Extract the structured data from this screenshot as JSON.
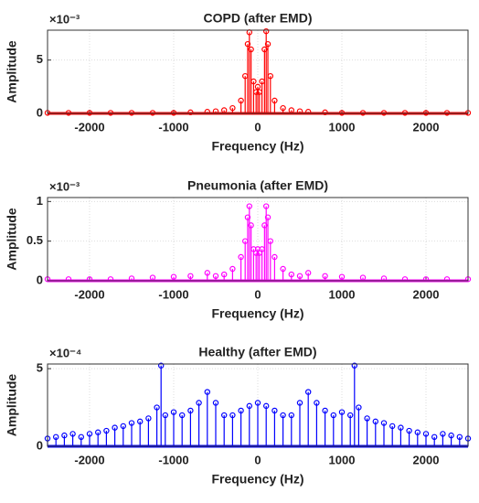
{
  "chart_data": [
    {
      "type": "stem",
      "title": "COPD (after EMD)",
      "xlabel": "Frequency (Hz)",
      "ylabel": "Amplitude",
      "exponent": "×10⁻³",
      "color": "#ff0000",
      "grid": true,
      "xlim": [
        -2500,
        2500
      ],
      "xticks": [
        -2000,
        -1000,
        0,
        1000,
        2000
      ],
      "ylim": [
        0,
        7.8
      ],
      "yticks": [
        0,
        5
      ],
      "x": [
        -2500,
        -2250,
        -2000,
        -1750,
        -1500,
        -1250,
        -1000,
        -800,
        -600,
        -500,
        -400,
        -300,
        -200,
        -150,
        -120,
        -100,
        -80,
        -50,
        -20,
        0,
        20,
        50,
        80,
        100,
        120,
        150,
        200,
        300,
        400,
        500,
        600,
        800,
        1000,
        1250,
        1500,
        1750,
        2000,
        2250,
        2500
      ],
      "values": [
        0.05,
        0.05,
        0.05,
        0.05,
        0.05,
        0.05,
        0.05,
        0.1,
        0.15,
        0.2,
        0.3,
        0.5,
        1.2,
        3.5,
        6.5,
        7.6,
        6,
        3,
        2,
        2.5,
        2,
        3,
        6,
        7.7,
        6.5,
        3.5,
        1.2,
        0.5,
        0.3,
        0.2,
        0.15,
        0.1,
        0.05,
        0.05,
        0.05,
        0.05,
        0.05,
        0.05,
        0.05
      ]
    },
    {
      "type": "stem",
      "title": "Pneumonia (after EMD)",
      "xlabel": "Frequency (Hz)",
      "ylabel": "Amplitude",
      "exponent": "×10⁻³",
      "color": "#ff00ff",
      "grid": true,
      "xlim": [
        -2500,
        2500
      ],
      "xticks": [
        -2000,
        -1000,
        0,
        1000,
        2000
      ],
      "ylim": [
        0,
        1.05
      ],
      "yticks": [
        0,
        0.5,
        1
      ],
      "x": [
        -2500,
        -2250,
        -2000,
        -1750,
        -1500,
        -1250,
        -1000,
        -800,
        -600,
        -500,
        -400,
        -300,
        -200,
        -150,
        -120,
        -100,
        -80,
        -50,
        -20,
        0,
        20,
        50,
        80,
        100,
        120,
        150,
        200,
        300,
        400,
        500,
        600,
        800,
        1000,
        1250,
        1500,
        1750,
        2000,
        2250,
        2500
      ],
      "values": [
        0.02,
        0.02,
        0.02,
        0.02,
        0.03,
        0.04,
        0.05,
        0.06,
        0.1,
        0.06,
        0.08,
        0.15,
        0.3,
        0.5,
        0.8,
        0.94,
        0.7,
        0.4,
        0.35,
        0.4,
        0.35,
        0.4,
        0.7,
        0.94,
        0.8,
        0.5,
        0.3,
        0.15,
        0.08,
        0.06,
        0.1,
        0.06,
        0.05,
        0.04,
        0.03,
        0.02,
        0.02,
        0.02,
        0.02
      ]
    },
    {
      "type": "stem",
      "title": "Healthy (after EMD)",
      "xlabel": "Frequency (Hz)",
      "ylabel": "Amplitude",
      "exponent": "×10⁻⁴",
      "color": "#0000ff",
      "grid": true,
      "xlim": [
        -2500,
        2500
      ],
      "xticks": [
        -2000,
        -1000,
        0,
        1000,
        2000
      ],
      "ylim": [
        0,
        5.3
      ],
      "yticks": [
        0,
        5
      ],
      "x": [
        -2500,
        -2400,
        -2300,
        -2200,
        -2100,
        -2000,
        -1900,
        -1800,
        -1700,
        -1600,
        -1500,
        -1400,
        -1300,
        -1200,
        -1150,
        -1100,
        -1000,
        -900,
        -800,
        -700,
        -600,
        -500,
        -400,
        -300,
        -200,
        -100,
        0,
        100,
        200,
        300,
        400,
        500,
        600,
        700,
        800,
        900,
        1000,
        1100,
        1150,
        1200,
        1300,
        1400,
        1500,
        1600,
        1700,
        1800,
        1900,
        2000,
        2100,
        2200,
        2300,
        2400,
        2500
      ],
      "values": [
        0.5,
        0.6,
        0.7,
        0.8,
        0.6,
        0.8,
        0.9,
        1.0,
        1.2,
        1.3,
        1.5,
        1.6,
        1.8,
        2.5,
        5.2,
        2.0,
        2.2,
        2.0,
        2.3,
        2.8,
        3.5,
        2.8,
        2.0,
        2.0,
        2.3,
        2.6,
        2.8,
        2.6,
        2.3,
        2.0,
        2.0,
        2.8,
        3.5,
        2.8,
        2.3,
        2.0,
        2.2,
        2.0,
        5.2,
        2.5,
        1.8,
        1.6,
        1.5,
        1.3,
        1.2,
        1.0,
        0.9,
        0.8,
        0.6,
        0.8,
        0.7,
        0.6,
        0.5
      ]
    }
  ]
}
